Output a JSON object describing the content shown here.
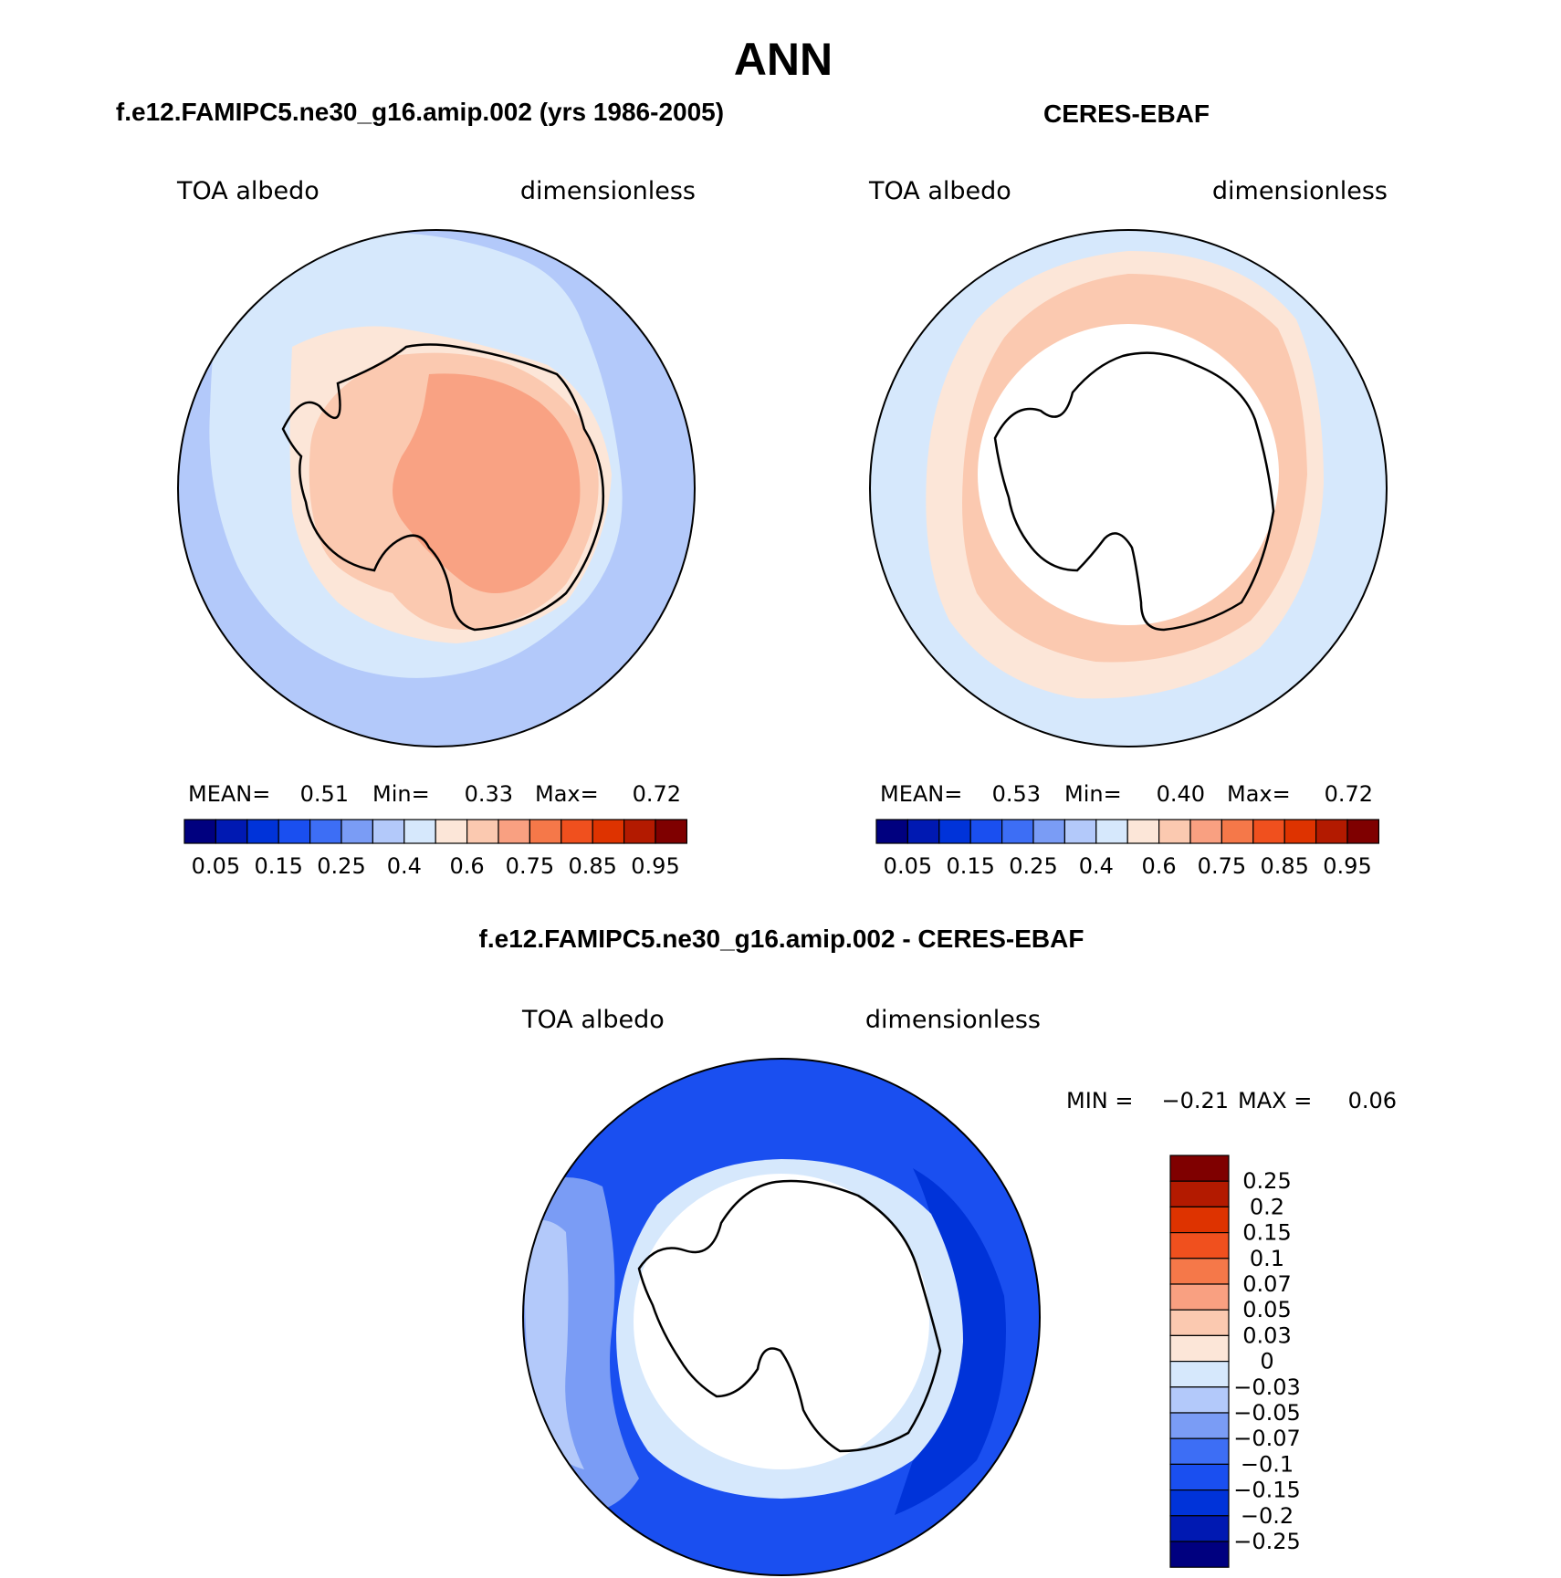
{
  "page_title": "ANN",
  "panels": [
    {
      "id": "model",
      "title": "f.e12.FAMIPC5.ne30_g16.amip.002 (yrs 1986-2005)",
      "variable": "TOA albedo",
      "units": "dimensionless",
      "stats": {
        "mean_label": "MEAN=",
        "mean": "0.51",
        "min_label": "Min=",
        "min": "0.33",
        "max_label": "Max=",
        "max": "0.72"
      }
    },
    {
      "id": "obs",
      "title": "CERES-EBAF",
      "variable": "TOA albedo",
      "units": "dimensionless",
      "stats": {
        "mean_label": "MEAN=",
        "mean": "0.53",
        "min_label": "Min=",
        "min": "0.40",
        "max_label": "Max=",
        "max": "0.72"
      }
    },
    {
      "id": "diff",
      "title": "f.e12.FAMIPC5.ne30_g16.amip.002 - CERES-EBAF",
      "variable": "TOA albedo",
      "units": "dimensionless",
      "stats": {
        "min_label": "MIN =",
        "min": "−0.21",
        "max_label": "MAX =",
        "max": "0.06"
      }
    }
  ],
  "colorbar_abs": {
    "colors": [
      "#00007f",
      "#0019b2",
      "#0033d9",
      "#1a4ff0",
      "#3d6ef5",
      "#7a9cf5",
      "#b3c9fa",
      "#d6e8fc",
      "#fce6d8",
      "#fbc9b0",
      "#f9a081",
      "#f57849",
      "#f0501e",
      "#de3300",
      "#b31a00",
      "#7f0000"
    ],
    "labels": [
      "0.05",
      "0.15",
      "0.25",
      "0.4",
      "0.6",
      "0.75",
      "0.85",
      "0.95"
    ]
  },
  "colorbar_diff": {
    "colors": [
      "#7f0000",
      "#b31a00",
      "#de3300",
      "#f0501e",
      "#f57849",
      "#f9a081",
      "#fbc9b0",
      "#fce6d8",
      "#d6e8fc",
      "#b3c9fa",
      "#7a9cf5",
      "#3d6ef5",
      "#1a4ff0",
      "#0033d9",
      "#0019b2",
      "#00007f"
    ],
    "labels": [
      "0.25",
      "0.2",
      "0.15",
      "0.1",
      "0.07",
      "0.05",
      "0.03",
      "0",
      "−0.03",
      "−0.05",
      "−0.07",
      "−0.1",
      "−0.15",
      "−0.2",
      "−0.25"
    ]
  }
}
